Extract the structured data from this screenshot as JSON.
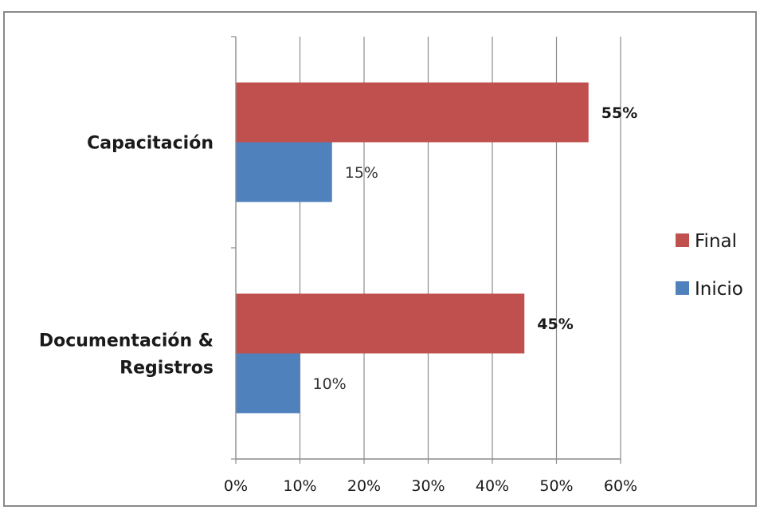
{
  "chart_data": {
    "type": "bar",
    "orientation": "horizontal",
    "categories": [
      "Capacitación",
      "Documentación & Registros"
    ],
    "category_lines": [
      [
        "Capacitación"
      ],
      [
        "Documentación &",
        "Registros"
      ]
    ],
    "series": [
      {
        "name": "Final",
        "values": [
          55,
          45
        ],
        "labels": [
          "55%",
          "45%"
        ],
        "color": "#C0504D"
      },
      {
        "name": "Inicio",
        "values": [
          15,
          10
        ],
        "labels": [
          "15%",
          "10%"
        ],
        "color": "#4F81BD"
      }
    ],
    "xlim": [
      0,
      60
    ],
    "x_ticks": [
      0,
      10,
      20,
      30,
      40,
      50,
      60
    ],
    "x_tick_labels": [
      "0%",
      "10%",
      "20%",
      "30%",
      "40%",
      "50%",
      "60%"
    ],
    "grid": "vertical",
    "legend": {
      "position": "right",
      "entries": [
        "Final",
        "Inicio"
      ]
    },
    "title": "",
    "xlabel": "",
    "ylabel": ""
  }
}
